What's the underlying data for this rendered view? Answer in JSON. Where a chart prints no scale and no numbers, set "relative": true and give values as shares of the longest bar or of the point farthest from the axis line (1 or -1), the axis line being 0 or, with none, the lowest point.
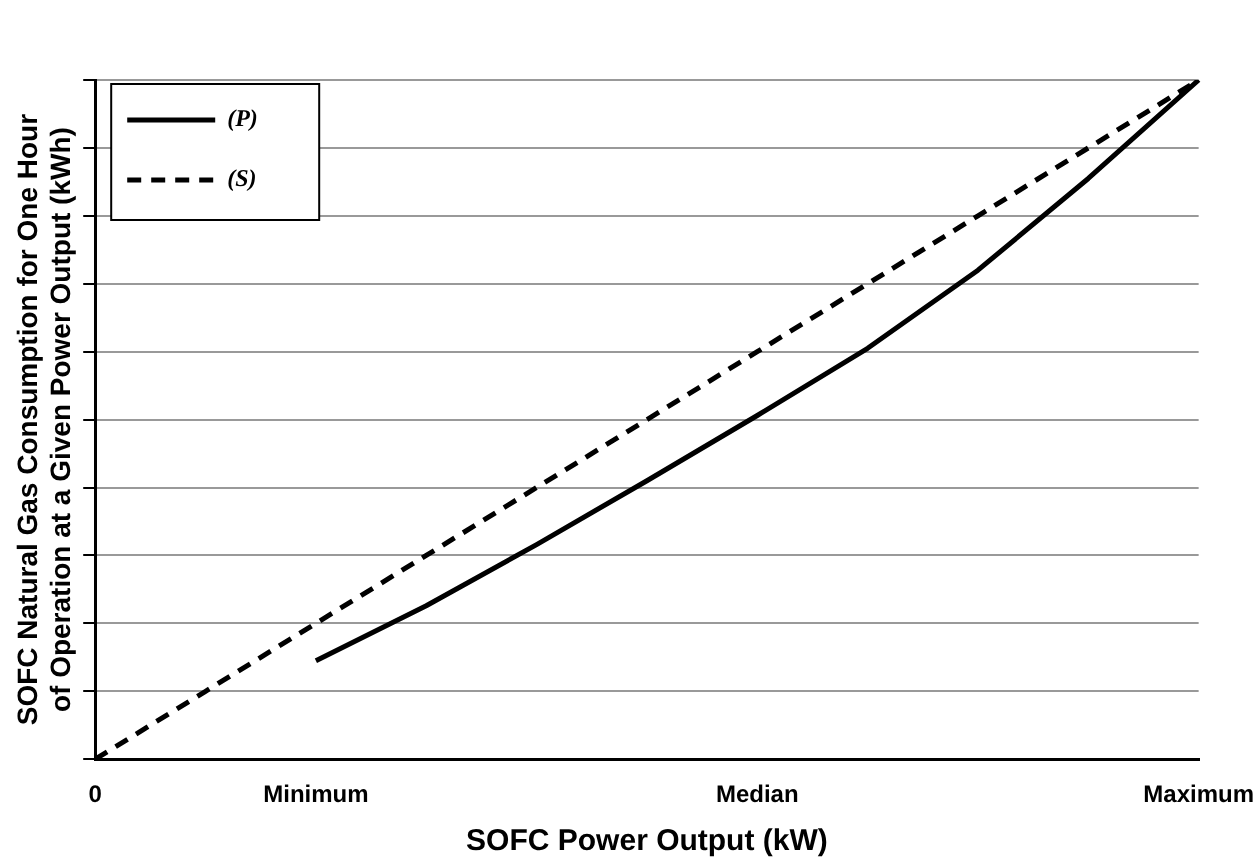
{
  "chart_data": {
    "type": "line",
    "xlabel": "SOFC Power Output (kW)",
    "ylabel": "SOFC Natural Gas Consumption for One Hour of Operation at a Given Power Output (kWh)",
    "relative": true,
    "categories": [
      "0",
      null,
      "Minimum",
      null,
      null,
      null,
      "Median",
      null,
      null,
      null,
      "Maximum"
    ],
    "series": [
      {
        "name": "(P)",
        "color": "#000000",
        "line_style": "solid",
        "values": [
          null,
          null,
          0.145,
          0.226,
          0.316,
          0.41,
          0.506,
          0.605,
          0.72,
          0.855,
          1
        ]
      },
      {
        "name": "(S)",
        "color": "#000000",
        "line_style": "dashed",
        "values": [
          0,
          0.1,
          0.2,
          0.3,
          0.4,
          0.5,
          0.6,
          0.7,
          0.8,
          0.9,
          1
        ]
      }
    ],
    "grid": "y",
    "legend": "top left",
    "marker": "none"
  }
}
